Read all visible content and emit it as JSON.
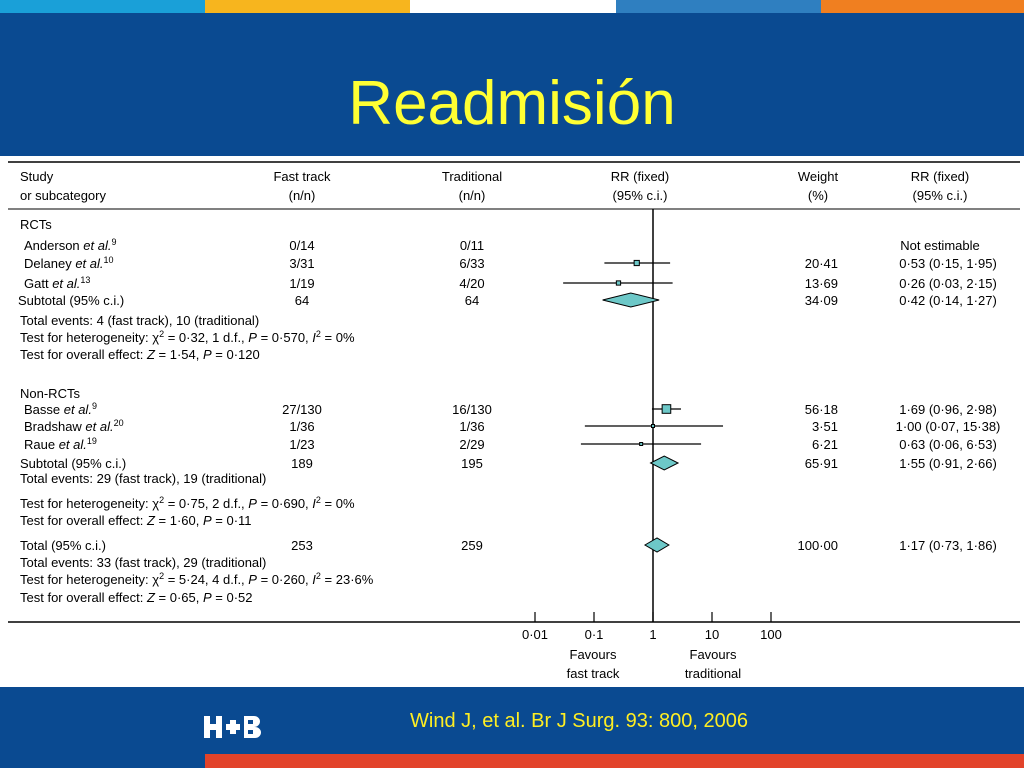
{
  "colors": {
    "header_bg": "#0a4a91",
    "footer_bg": "#0a4a91",
    "title_text": "#ffff33",
    "citation_text": "#ffee22",
    "strip": [
      "#1aa0d8",
      "#f7b51e",
      "#ffffff",
      "#2f7fc0",
      "#f07f20"
    ],
    "bottom_strip": "#e2432a",
    "marker_fill": "#6dc8c8"
  },
  "slide": {
    "title": "Readmisión",
    "citation": "Wind J, et al.  Br J Surg.  93: 800, 2006",
    "logo_text": "H+B"
  },
  "table": {
    "headers": {
      "study": [
        "Study",
        "or subcategory"
      ],
      "fast_track": [
        "Fast track",
        "(n/n)"
      ],
      "traditional": [
        "Traditional",
        "(n/n)"
      ],
      "rr_plot": [
        "RR (fixed)",
        "(95% c.i.)"
      ],
      "weight": [
        "Weight",
        "(%)"
      ],
      "rr_value": [
        "RR (fixed)",
        "(95% c.i.)"
      ]
    },
    "groups": [
      {
        "name": "RCTs",
        "studies": [
          {
            "author": "Anderson",
            "etal": "et al.",
            "ref": "9",
            "fast": "0/14",
            "trad": "0/11",
            "weight": "",
            "rr_text": "Not estimable",
            "rr": null,
            "lo": null,
            "hi": null
          },
          {
            "author": "Delaney",
            "etal": "et al.",
            "ref": "10",
            "fast": "3/31",
            "trad": "6/33",
            "weight": "20·41",
            "rr_text": "0·53 (0·15, 1·95)",
            "rr": 0.53,
            "lo": 0.15,
            "hi": 1.95
          },
          {
            "author": "Gatt",
            "etal": "et al.",
            "ref": "13",
            "fast": "1/19",
            "trad": "4/20",
            "weight": "13·69",
            "rr_text": "0·26 (0·03, 2·15)",
            "rr": 0.26,
            "lo": 0.03,
            "hi": 2.15
          }
        ],
        "subtotal": {
          "label": "Subtotal (95% c.i.)",
          "fast": "64",
          "trad": "64",
          "weight": "34·09",
          "rr_text": "0·42 (0·14, 1·27)",
          "rr": 0.42,
          "lo": 0.14,
          "hi": 1.27
        },
        "notes": [
          "Total events: 4 (fast track), 10 (traditional)",
          "Test for heterogeneity: χ² = 0·32, 1 d.f., P = 0·570, I² = 0%",
          "Test for overall effect: Z = 1·54, P = 0·120"
        ]
      },
      {
        "name": "Non-RCTs",
        "studies": [
          {
            "author": "Basse",
            "etal": "et al.",
            "ref": "9",
            "fast": "27/130",
            "trad": "16/130",
            "weight": "56·18",
            "rr_text": "1·69 (0·96, 2·98)",
            "rr": 1.69,
            "lo": 0.96,
            "hi": 2.98
          },
          {
            "author": "Bradshaw",
            "etal": "et al.",
            "ref": "20",
            "fast": "1/36",
            "trad": "1/36",
            "weight": "3·51",
            "rr_text": "1·00 (0·07, 15·38)",
            "rr": 1.0,
            "lo": 0.07,
            "hi": 15.38
          },
          {
            "author": "Raue",
            "etal": "et al.",
            "ref": "19",
            "fast": "1/23",
            "trad": "2/29",
            "weight": "6·21",
            "rr_text": "0·63 (0·06, 6·53)",
            "rr": 0.63,
            "lo": 0.06,
            "hi": 6.53
          }
        ],
        "subtotal": {
          "label": "Subtotal (95% c.i.)",
          "fast": "189",
          "trad": "195",
          "weight": "65·91",
          "rr_text": "1·55 (0·91, 2·66)",
          "rr": 1.55,
          "lo": 0.91,
          "hi": 2.66
        },
        "notes": [
          "Total events: 29 (fast track), 19 (traditional)",
          "Test for heterogeneity: χ² = 0·75, 2 d.f., P = 0·690, I² = 0%",
          "Test for overall effect: Z = 1·60, P = 0·11"
        ]
      }
    ],
    "total": {
      "label": "Total (95% c.i.)",
      "fast": "253",
      "trad": "259",
      "weight": "100·00",
      "rr_text": "1·17 (0·73, 1·86)",
      "rr": 1.17,
      "lo": 0.73,
      "hi": 1.86,
      "notes": [
        "Total events: 33 (fast track), 29 (traditional)",
        "Test for heterogeneity: χ² = 5·24, 4 d.f., P = 0·260, I² = 23·6%",
        "Test for overall effect: Z = 0·65, P = 0·52"
      ]
    },
    "axis": {
      "ticks": [
        "0·01",
        "0·1",
        "1",
        "10",
        "100"
      ],
      "left_label": [
        "Favours",
        "fast track"
      ],
      "right_label": [
        "Favours",
        "traditional"
      ]
    }
  },
  "chart_data": {
    "type": "forest",
    "scale": "log",
    "xlim": [
      0.01,
      100
    ],
    "xticks": [
      0.01,
      0.1,
      1,
      10,
      100
    ],
    "reference_line": 1,
    "markers": "square for studies, diamond for subtotals and total"
  }
}
